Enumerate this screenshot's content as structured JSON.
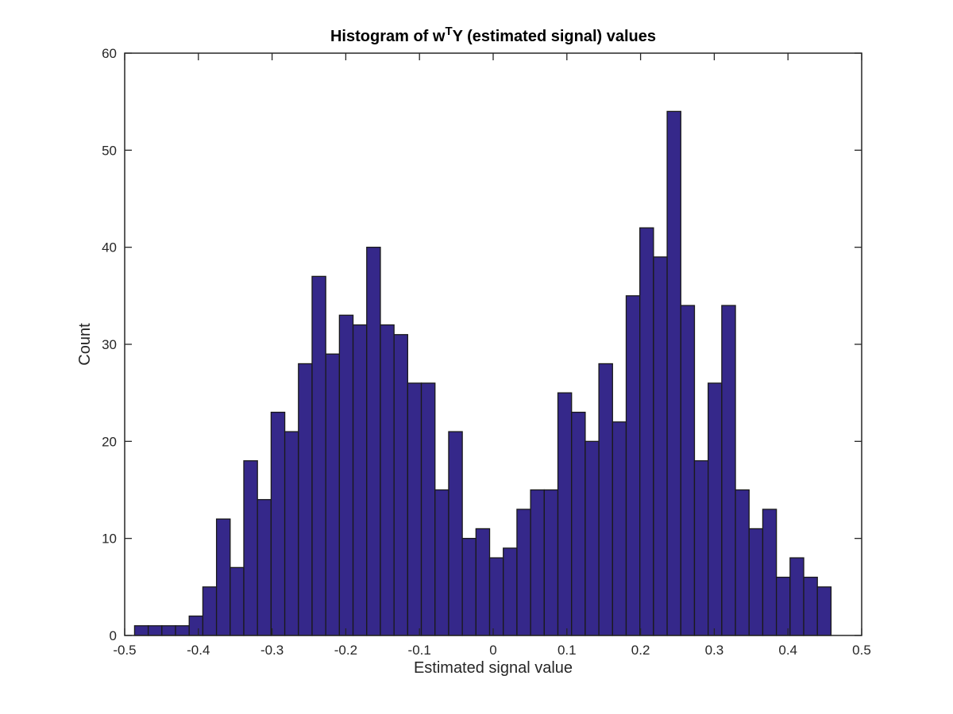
{
  "chart_data": {
    "type": "bar",
    "subtype": "histogram",
    "title": {
      "prefix": "Histogram of w",
      "superscript": "T",
      "suffix": "Y (estimated signal) values"
    },
    "xlabel": "Estimated signal value",
    "ylabel": "Count",
    "xlim": [
      -0.5,
      0.5
    ],
    "ylim": [
      0,
      60
    ],
    "xticks": [
      -0.5,
      -0.4,
      -0.3,
      -0.2,
      -0.1,
      0,
      0.1,
      0.2,
      0.3,
      0.4,
      0.5
    ],
    "xtick_labels": [
      "-0.5",
      "-0.4",
      "-0.3",
      "-0.2",
      "-0.1",
      "0",
      "0.1",
      "0.2",
      "0.3",
      "0.4",
      "0.5"
    ],
    "yticks": [
      0,
      10,
      20,
      30,
      40,
      50,
      60
    ],
    "ytick_labels": [
      "0",
      "10",
      "20",
      "30",
      "40",
      "50",
      "60"
    ],
    "bin_start": -0.4866,
    "bin_width": 0.01853,
    "values": [
      1,
      1,
      1,
      1,
      2,
      5,
      12,
      7,
      18,
      14,
      23,
      21,
      28,
      37,
      29,
      33,
      32,
      40,
      32,
      31,
      26,
      26,
      15,
      21,
      10,
      11,
      8,
      9,
      13,
      15,
      15,
      25,
      23,
      20,
      28,
      22,
      35,
      42,
      39,
      54,
      34,
      18,
      26,
      34,
      15,
      11,
      13,
      6,
      8,
      6,
      5
    ],
    "grid": false,
    "legend": "none",
    "bar_color": "#35288a",
    "edge_color": "#1a1a1a",
    "box": true
  }
}
